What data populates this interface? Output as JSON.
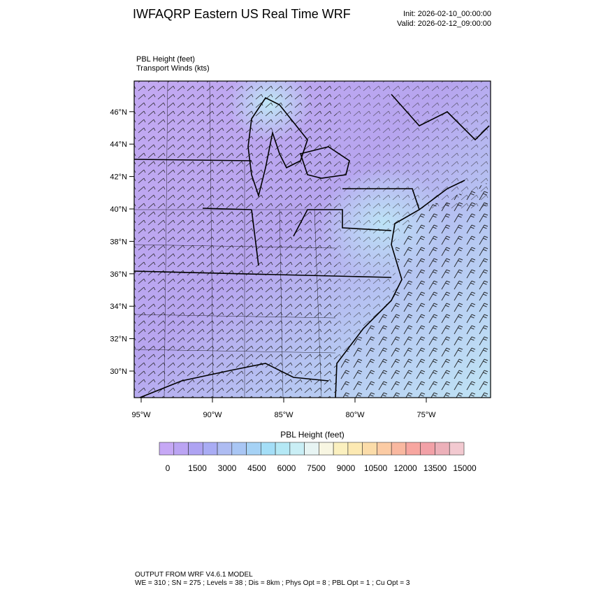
{
  "header": {
    "title": "IWFAQRP Eastern US Real Time WRF",
    "init": "Init: 2026-02-10_00:00:00",
    "valid": "Valid: 2026-02-12_09:00:00"
  },
  "fields": {
    "primary": "PBL Height   (feet)",
    "secondary": "Transport Winds   (kts)"
  },
  "map": {
    "lat_labels": [
      "30°N",
      "32°N",
      "34°N",
      "36°N",
      "38°N",
      "40°N",
      "42°N",
      "44°N",
      "46°N"
    ],
    "lon_labels": [
      "95°W",
      "90°W",
      "85°W",
      "80°W",
      "75°W"
    ]
  },
  "colorbar": {
    "title": "PBL Height  (feet)",
    "labels": [
      "0",
      "1500",
      "3000",
      "4500",
      "6000",
      "7500",
      "9000",
      "10500",
      "12000",
      "13500",
      "15000"
    ]
  },
  "footer": {
    "line1": "OUTPUT FROM WRF V4.6.1 MODEL",
    "line2": "WE = 310 ; SN = 275 ; Levels = 38 ; Dis = 8km ; Phys Opt = 8 ; PBL Opt = 1 ; Cu Opt = 3"
  }
}
